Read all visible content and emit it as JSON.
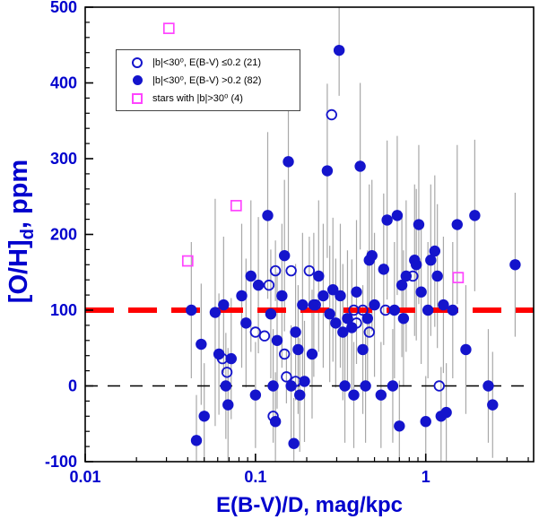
{
  "colors": {
    "blue": "#1414cc",
    "label_blue": "#0000cd",
    "magenta": "#ff44ff",
    "red": "#ff0000",
    "errorbar_gray": "#a8a8a8",
    "frame_black": "#000000"
  },
  "axes": {
    "ylabel_main": "[O/H]",
    "ylabel_sub": "d",
    "ylabel_rest": ", ppm",
    "xlabel": "E(B-V)/D, mag/kpc",
    "x_ticks": [
      {
        "v": 0.01,
        "label": "0.01"
      },
      {
        "v": 0.1,
        "label": "0.1"
      },
      {
        "v": 1,
        "label": "1"
      }
    ],
    "y_ticks": [
      {
        "v": -100,
        "label": "-100"
      },
      {
        "v": 0,
        "label": "0"
      },
      {
        "v": 100,
        "label": "100"
      },
      {
        "v": 200,
        "label": "200"
      },
      {
        "v": 300,
        "label": "300"
      },
      {
        "v": 400,
        "label": "400"
      },
      {
        "v": 500,
        "label": "500"
      }
    ]
  },
  "legend": {
    "items": [
      {
        "symbol": "open-circle",
        "label": "|b|<30⁰, E(B-V) ≤0.2 (21)"
      },
      {
        "symbol": "filled-circle",
        "label": "|b|<30⁰, E(B-V) >0.2 (82)"
      },
      {
        "symbol": "open-square",
        "label": "stars with |b|>30⁰ (4)"
      }
    ]
  },
  "chart_data": {
    "type": "scatter",
    "xscale": "log",
    "xlim": [
      0.01,
      4.3
    ],
    "ylim": [
      -100,
      500
    ],
    "xlabel": "E(B-V)/D, mag/kpc",
    "ylabel": "[O/H]d, ppm",
    "grid": false,
    "legend_position": "upper-left-inside",
    "reference_lines": [
      {
        "y": 100,
        "color": "#ff0000",
        "style": "dashed",
        "width": 6,
        "dash": "32 16"
      },
      {
        "y": 0,
        "color": "#000000",
        "style": "dashed",
        "width": 1.6,
        "dash": "14 11"
      }
    ],
    "series": [
      {
        "name": "|b|<30deg, E(B-V) <= 0.2",
        "marker": "open-circle",
        "color": "#1414cc",
        "points": [
          [
            0.064,
            36,
            0
          ],
          [
            0.068,
            18,
            0
          ],
          [
            0.1,
            71,
            0
          ],
          [
            0.113,
            66,
            0
          ],
          [
            0.12,
            133,
            0
          ],
          [
            0.127,
            -40,
            0
          ],
          [
            0.131,
            152,
            40
          ],
          [
            0.148,
            42,
            0
          ],
          [
            0.152,
            12,
            35
          ],
          [
            0.162,
            152,
            0
          ],
          [
            0.172,
            6,
            0
          ],
          [
            0.207,
            152,
            45
          ],
          [
            0.225,
            107,
            0
          ],
          [
            0.28,
            358,
            0
          ],
          [
            0.378,
            100,
            0
          ],
          [
            0.392,
            83,
            0
          ],
          [
            0.427,
            100,
            0
          ],
          [
            0.466,
            71,
            0
          ],
          [
            0.58,
            100,
            0
          ],
          [
            0.84,
            145,
            0
          ],
          [
            1.2,
            0,
            0
          ]
        ]
      },
      {
        "name": "|b|<30deg, E(B-V) > 0.2",
        "marker": "filled-circle",
        "color": "#1414cc",
        "points": [
          [
            0.042,
            100,
            90
          ],
          [
            0.045,
            -72,
            60
          ],
          [
            0.048,
            55,
            80
          ],
          [
            0.05,
            -40,
            70
          ],
          [
            0.058,
            97,
            150
          ],
          [
            0.061,
            42,
            80
          ],
          [
            0.065,
            107,
            90
          ],
          [
            0.067,
            0,
            70
          ],
          [
            0.069,
            -25,
            75
          ],
          [
            0.072,
            36,
            80
          ],
          [
            0.083,
            119,
            95
          ],
          [
            0.088,
            83,
            85
          ],
          [
            0.094,
            145,
            100
          ],
          [
            0.1,
            -12,
            70
          ],
          [
            0.104,
            133,
            90
          ],
          [
            0.118,
            225,
            110
          ],
          [
            0.123,
            95,
            85
          ],
          [
            0.127,
            0,
            75
          ],
          [
            0.131,
            -47,
            65
          ],
          [
            0.134,
            60,
            90
          ],
          [
            0.143,
            119,
            95
          ],
          [
            0.148,
            172,
            100
          ],
          [
            0.156,
            296,
            120
          ],
          [
            0.162,
            0,
            80
          ],
          [
            0.168,
            -76,
            60
          ],
          [
            0.172,
            71,
            90
          ],
          [
            0.178,
            48,
            85
          ],
          [
            0.182,
            -12,
            75
          ],
          [
            0.189,
            107,
            95
          ],
          [
            0.194,
            6,
            80
          ],
          [
            0.215,
            42,
            85
          ],
          [
            0.22,
            107,
            95
          ],
          [
            0.235,
            145,
            100
          ],
          [
            0.25,
            119,
            95
          ],
          [
            0.264,
            284,
            115
          ],
          [
            0.273,
            95,
            90
          ],
          [
            0.285,
            127,
            95
          ],
          [
            0.296,
            83,
            85
          ],
          [
            0.31,
            443,
            60
          ],
          [
            0.315,
            119,
            95
          ],
          [
            0.326,
            71,
            90
          ],
          [
            0.335,
            0,
            75
          ],
          [
            0.347,
            89,
            90
          ],
          [
            0.368,
            77,
            90
          ],
          [
            0.378,
            -12,
            70
          ],
          [
            0.392,
            124,
            95
          ],
          [
            0.412,
            290,
            110
          ],
          [
            0.427,
            48,
            85
          ],
          [
            0.443,
            0,
            75
          ],
          [
            0.455,
            89,
            90
          ],
          [
            0.466,
            166,
            100
          ],
          [
            0.483,
            172,
            100
          ],
          [
            0.5,
            107,
            95
          ],
          [
            0.546,
            -12,
            70
          ],
          [
            0.566,
            154,
            100
          ],
          [
            0.593,
            219,
            105
          ],
          [
            0.64,
            0,
            75
          ],
          [
            0.655,
            100,
            90
          ],
          [
            0.68,
            225,
            105
          ],
          [
            0.7,
            -53,
            60
          ],
          [
            0.724,
            133,
            95
          ],
          [
            0.74,
            89,
            90
          ],
          [
            0.767,
            145,
            100
          ],
          [
            0.86,
            166,
            100
          ],
          [
            0.88,
            160,
            100
          ],
          [
            0.91,
            213,
            105
          ],
          [
            0.94,
            124,
            95
          ],
          [
            1.0,
            -47,
            60
          ],
          [
            1.03,
            100,
            90
          ],
          [
            1.07,
            166,
            100
          ],
          [
            1.13,
            178,
            100
          ],
          [
            1.17,
            145,
            95
          ],
          [
            1.23,
            -40,
            65
          ],
          [
            1.27,
            107,
            90
          ],
          [
            1.32,
            -35,
            65
          ],
          [
            1.44,
            100,
            90
          ],
          [
            1.53,
            213,
            105
          ],
          [
            1.72,
            48,
            85
          ],
          [
            1.94,
            225,
            100
          ],
          [
            2.33,
            0,
            75
          ],
          [
            2.47,
            -25,
            70
          ],
          [
            3.35,
            160,
            95
          ]
        ]
      },
      {
        "name": "stars with |b|>30deg",
        "marker": "open-square",
        "color": "#ff44ff",
        "points": [
          [
            0.031,
            472,
            0
          ],
          [
            0.04,
            165,
            0
          ],
          [
            0.077,
            238,
            0
          ],
          [
            1.55,
            143,
            0
          ]
        ]
      }
    ]
  }
}
